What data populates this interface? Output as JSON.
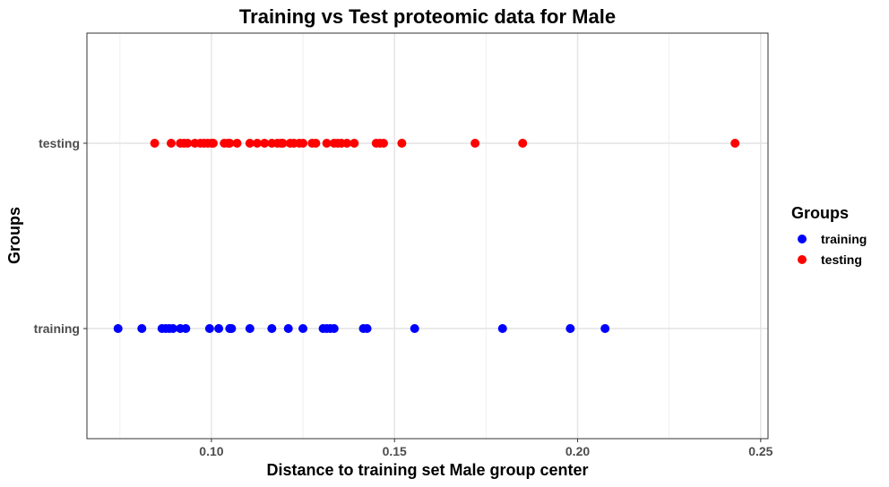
{
  "chart_data": {
    "type": "scatter",
    "title": "Training vs Test proteomic data for Male",
    "xlabel": "Distance to training set Male group center",
    "ylabel": "Groups",
    "xlim": [
      0.066,
      0.252
    ],
    "x_ticks": [
      "0.10",
      "0.15",
      "0.20",
      "0.25"
    ],
    "y_categories": [
      "training",
      "testing"
    ],
    "grid": true,
    "legend": {
      "title": "Groups",
      "position": "right",
      "entries": [
        "training",
        "testing"
      ]
    },
    "series": [
      {
        "name": "training",
        "color": "#0000ff",
        "x": [
          0.0745,
          0.081,
          0.0865,
          0.0875,
          0.0885,
          0.0895,
          0.0915,
          0.093,
          0.0995,
          0.102,
          0.105,
          0.1055,
          0.1105,
          0.1165,
          0.121,
          0.125,
          0.1305,
          0.1315,
          0.1325,
          0.1335,
          0.1415,
          0.1425,
          0.1555,
          0.1795,
          0.198,
          0.2075
        ]
      },
      {
        "name": "testing",
        "color": "#ff0000",
        "x": [
          0.0845,
          0.089,
          0.0915,
          0.0925,
          0.0935,
          0.0955,
          0.097,
          0.098,
          0.099,
          0.1,
          0.1005,
          0.1035,
          0.1045,
          0.105,
          0.107,
          0.1105,
          0.1125,
          0.1145,
          0.1165,
          0.118,
          0.119,
          0.1195,
          0.1215,
          0.1225,
          0.124,
          0.125,
          0.1275,
          0.1285,
          0.1315,
          0.1335,
          0.1345,
          0.1355,
          0.137,
          0.139,
          0.145,
          0.146,
          0.147,
          0.152,
          0.172,
          0.185,
          0.243
        ]
      }
    ]
  }
}
